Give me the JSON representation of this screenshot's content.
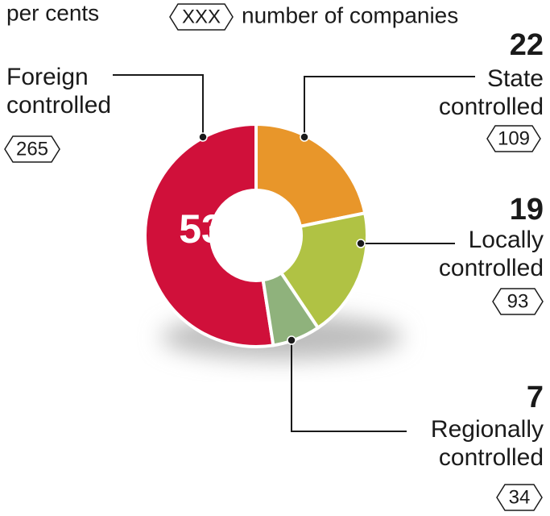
{
  "chart_data": {
    "type": "pie",
    "donut": true,
    "unit_label": "per cents",
    "count_legend_symbol": "XXX",
    "count_legend_label": "number of companies",
    "categories": [
      "Foreign controlled",
      "State controlled",
      "Locally controlled",
      "Regionally controlled"
    ],
    "values": [
      53,
      22,
      19,
      7
    ],
    "counts": [
      265,
      109,
      93,
      34
    ],
    "colors": [
      "#d0103a",
      "#e8962a",
      "#b0c244",
      "#8fb27c"
    ]
  }
}
